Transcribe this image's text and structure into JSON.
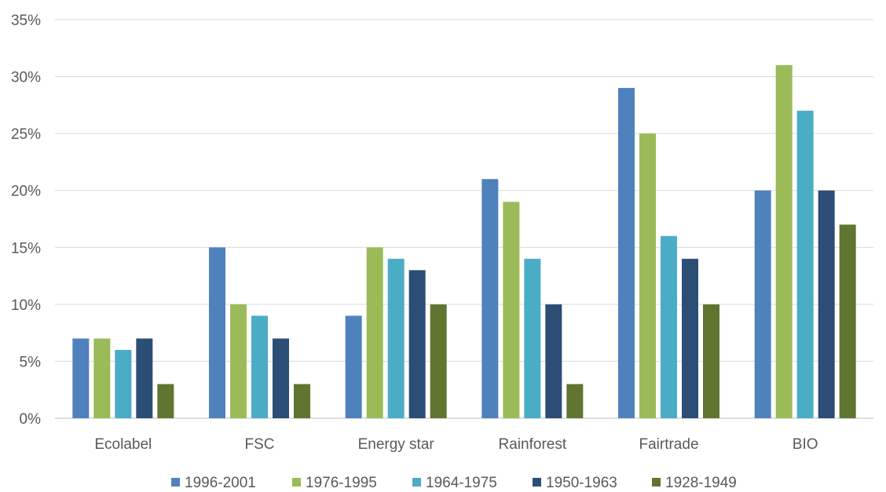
{
  "chart_data": {
    "type": "bar",
    "title": "",
    "xlabel": "",
    "ylabel": "",
    "ylim": [
      0,
      35
    ],
    "y_ticks": [
      "0%",
      "5%",
      "10%",
      "15%",
      "20%",
      "25%",
      "30%",
      "35%"
    ],
    "y_tick_values": [
      0,
      5,
      10,
      15,
      20,
      25,
      30,
      35
    ],
    "grid": true,
    "legend_position": "bottom",
    "categories": [
      "Ecolabel",
      "FSC",
      "Energy star",
      "Rainforest",
      "Fairtrade",
      "BIO"
    ],
    "series": [
      {
        "name": "1996-2001",
        "color": "#4f81bd",
        "values": [
          7,
          15,
          9,
          21,
          29,
          20
        ]
      },
      {
        "name": "1976-1995",
        "color": "#9bbb59",
        "values": [
          7,
          10,
          15,
          19,
          25,
          31
        ]
      },
      {
        "name": "1964-1975",
        "color": "#4bacc6",
        "values": [
          6,
          9,
          14,
          14,
          16,
          27
        ]
      },
      {
        "name": "1950-1963",
        "color": "#2c4d75",
        "values": [
          7,
          7,
          13,
          10,
          14,
          20
        ]
      },
      {
        "name": "1928-1949",
        "color": "#5f7530",
        "values": [
          3,
          3,
          10,
          3,
          10,
          17
        ]
      }
    ]
  }
}
